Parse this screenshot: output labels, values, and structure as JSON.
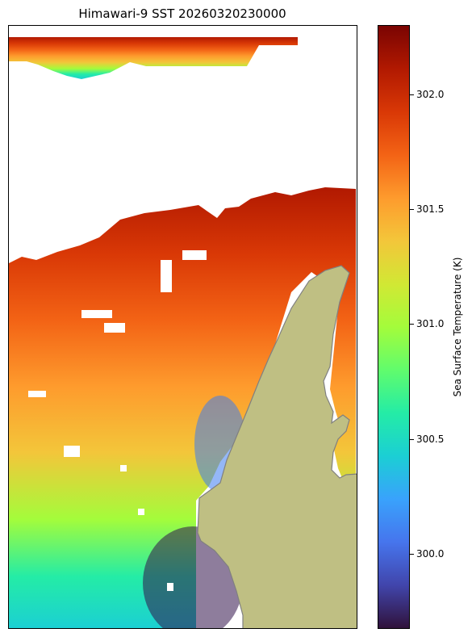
{
  "title": "Himawari-9 SST 20260320230000",
  "colorbar": {
    "label": "Sea Surface Temperature (K)",
    "min": 299.65,
    "max": 302.3,
    "ticks": [
      "300.0",
      "300.5",
      "301.0",
      "301.5",
      "302.0"
    ],
    "colormap": "turbo",
    "gradient_colors": [
      "#30123b",
      "#4145ab",
      "#4675ed",
      "#39a2fc",
      "#1bcfd4",
      "#24eca6",
      "#61fc6c",
      "#a4fc3b",
      "#d1e834",
      "#f3c63a",
      "#fe9b2d",
      "#f36315",
      "#d93806",
      "#b11901",
      "#7a0402"
    ]
  },
  "map": {
    "land_color": "#bfbf83",
    "land_edge_color": "#808080",
    "missing_color": "#ffffff"
  }
}
